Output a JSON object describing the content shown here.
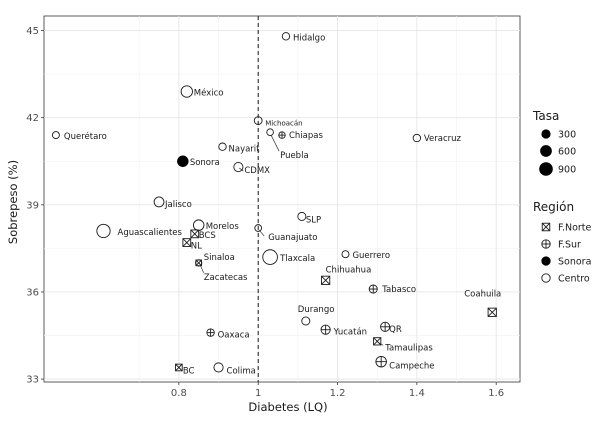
{
  "chart_data": {
    "type": "scatter",
    "xlabel": "Diabetes (LQ)",
    "ylabel": "Sobrepeso (%)",
    "xlim": [
      0.46,
      1.66
    ],
    "ylim": [
      32.9,
      45.5
    ],
    "xticks": [
      0.8,
      1.0,
      1.2,
      1.4,
      1.6
    ],
    "yticks": [
      33,
      36,
      39,
      42,
      45
    ],
    "xtick_labels": [
      "0.8",
      "1",
      "1.2",
      "1.4",
      "1.6"
    ],
    "ytick_labels": [
      "33",
      "36",
      "39",
      "42",
      "45"
    ],
    "grid": true,
    "reference_line_x": 1.0,
    "legend_position": "right",
    "legend_size": {
      "title": "Tasa",
      "entries": [
        "300",
        "600",
        "900"
      ],
      "values": [
        300,
        600,
        900
      ]
    },
    "legend_region": {
      "title": "Región",
      "entries": [
        {
          "label": "F.Norte",
          "shape": "boxcross"
        },
        {
          "label": "F.Sur",
          "shape": "pluscircle"
        },
        {
          "label": "Sonora",
          "shape": "filled"
        },
        {
          "label": "Centro",
          "shape": "open"
        }
      ]
    },
    "points": [
      {
        "name": "Hidalgo",
        "x": 1.07,
        "y": 44.8,
        "tasa": 150,
        "region": "Centro"
      },
      {
        "name": "México",
        "x": 0.82,
        "y": 42.9,
        "tasa": 560,
        "region": "Centro"
      },
      {
        "name": "Querétaro",
        "x": 0.49,
        "y": 41.4,
        "tasa": 120,
        "region": "Centro"
      },
      {
        "name": "Michoacán",
        "x": 1.0,
        "y": 41.9,
        "tasa": 180,
        "region": "Centro"
      },
      {
        "name": "Chiapas",
        "x": 1.06,
        "y": 41.4,
        "tasa": 90,
        "region": "F.Sur"
      },
      {
        "name": "Puebla",
        "x": 1.03,
        "y": 41.5,
        "tasa": 100,
        "region": "Centro"
      },
      {
        "name": "Veracruz",
        "x": 1.4,
        "y": 41.3,
        "tasa": 150,
        "region": "Centro"
      },
      {
        "name": "Nayarit",
        "x": 0.91,
        "y": 41.0,
        "tasa": 150,
        "region": "Centro"
      },
      {
        "name": "Sonora",
        "x": 0.81,
        "y": 40.5,
        "tasa": 450,
        "region": "Sonora"
      },
      {
        "name": "CDMX",
        "x": 0.95,
        "y": 40.3,
        "tasa": 300,
        "region": "Centro"
      },
      {
        "name": "Jalisco",
        "x": 0.75,
        "y": 39.1,
        "tasa": 370,
        "region": "Centro"
      },
      {
        "name": "SLP",
        "x": 1.11,
        "y": 38.6,
        "tasa": 200,
        "region": "Centro"
      },
      {
        "name": "Morelos",
        "x": 0.85,
        "y": 38.3,
        "tasa": 450,
        "region": "Centro"
      },
      {
        "name": "Guanajuato",
        "x": 1.0,
        "y": 38.2,
        "tasa": 110,
        "region": "Centro"
      },
      {
        "name": "Aguascalientes",
        "x": 0.61,
        "y": 38.1,
        "tasa": 850,
        "region": "Centro"
      },
      {
        "name": "BCS",
        "x": 0.84,
        "y": 38.0,
        "tasa": 250,
        "region": "F.Norte"
      },
      {
        "name": "NL",
        "x": 0.82,
        "y": 37.7,
        "tasa": 250,
        "region": "F.Norte"
      },
      {
        "name": "Tlaxcala",
        "x": 1.03,
        "y": 37.2,
        "tasa": 1100,
        "region": "Centro"
      },
      {
        "name": "Guerrero",
        "x": 1.22,
        "y": 37.3,
        "tasa": 120,
        "region": "Centro"
      },
      {
        "name": "Sinaloa",
        "x": 0.85,
        "y": 37.0,
        "tasa": 80,
        "region": "F.Norte"
      },
      {
        "name": "Zacatecas",
        "x": 0.85,
        "y": 37.0,
        "tasa": 80,
        "region": "Centro"
      },
      {
        "name": "Chihuahua",
        "x": 1.17,
        "y": 36.4,
        "tasa": 300,
        "region": "F.Norte"
      },
      {
        "name": "Tabasco",
        "x": 1.29,
        "y": 36.1,
        "tasa": 200,
        "region": "F.Sur"
      },
      {
        "name": "Coahuila",
        "x": 1.59,
        "y": 35.3,
        "tasa": 300,
        "region": "F.Norte"
      },
      {
        "name": "Durango",
        "x": 1.12,
        "y": 35.0,
        "tasa": 200,
        "region": "Centro"
      },
      {
        "name": "Yucatán",
        "x": 1.17,
        "y": 34.7,
        "tasa": 300,
        "region": "F.Sur"
      },
      {
        "name": "QR",
        "x": 1.32,
        "y": 34.8,
        "tasa": 300,
        "region": "F.Sur"
      },
      {
        "name": "Oaxaca",
        "x": 0.88,
        "y": 34.6,
        "tasa": 150,
        "region": "F.Sur"
      },
      {
        "name": "Tamaulipas",
        "x": 1.3,
        "y": 34.3,
        "tasa": 200,
        "region": "F.Norte"
      },
      {
        "name": "Campeche",
        "x": 1.31,
        "y": 33.6,
        "tasa": 450,
        "region": "F.Sur"
      },
      {
        "name": "BC",
        "x": 0.8,
        "y": 33.4,
        "tasa": 150,
        "region": "F.Norte"
      },
      {
        "name": "Colima",
        "x": 0.9,
        "y": 33.4,
        "tasa": 300,
        "region": "Centro"
      }
    ]
  }
}
